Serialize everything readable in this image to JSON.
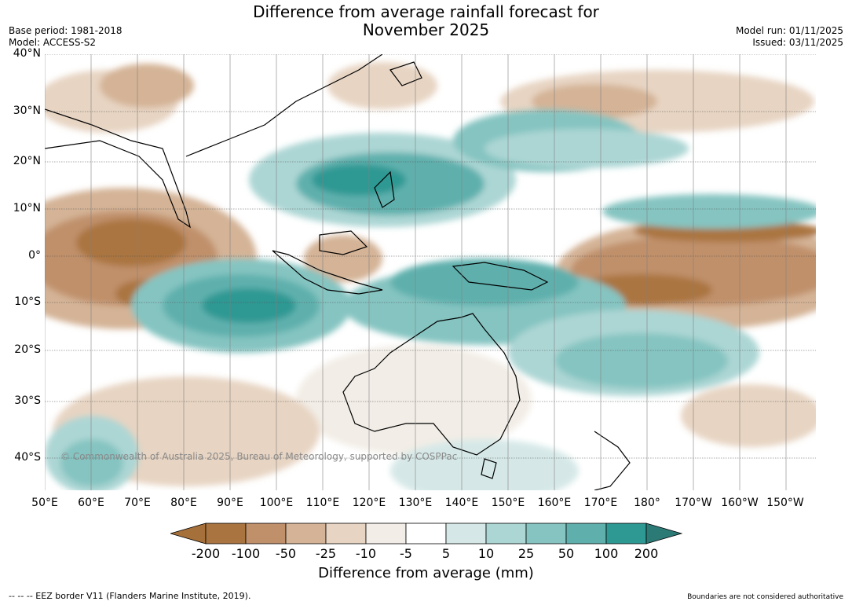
{
  "title": {
    "line1": "Difference from average rainfall forecast for",
    "line2": "November 2025"
  },
  "meta_left": {
    "base_period": "Base period: 1981-2018",
    "model": "Model: ACCESS-S2"
  },
  "meta_right": {
    "model_run": "Model run: 01/11/2025",
    "issued": "Issued: 03/11/2025"
  },
  "map": {
    "lat_labels": [
      "40°N",
      "30°N",
      "20°N",
      "10°N",
      "0°",
      "10°S",
      "20°S",
      "30°S",
      "40°S"
    ],
    "lon_labels": [
      "50°E",
      "60°E",
      "70°E",
      "80°E",
      "90°E",
      "100°E",
      "110°E",
      "120°E",
      "130°E",
      "140°E",
      "150°E",
      "160°E",
      "170°E",
      "180°",
      "170°W",
      "160°W",
      "150°W"
    ],
    "watermark": "© Commonwealth of Australia 2025, Bureau of Meteorology, supported by COSPPac"
  },
  "legend": {
    "ticks": [
      "-200",
      "-100",
      "-50",
      "-25",
      "-10",
      "-5",
      "5",
      "10",
      "25",
      "50",
      "100",
      "200"
    ],
    "colors": [
      "#a6703a",
      "#aa7440",
      "#c0906a",
      "#d4b396",
      "#e7d4c2",
      "#f2ede6",
      "#ffffff",
      "#d5e8e7",
      "#acd6d4",
      "#85c4c1",
      "#5fb0ad",
      "#2e9893",
      "#2c7a76"
    ],
    "label": "Difference from average (mm)"
  },
  "footer": {
    "left": "--  --  -- EEZ border V11 (Flanders Marine Institute, 2019).",
    "right": "Boundaries are not considered authoritative"
  }
}
